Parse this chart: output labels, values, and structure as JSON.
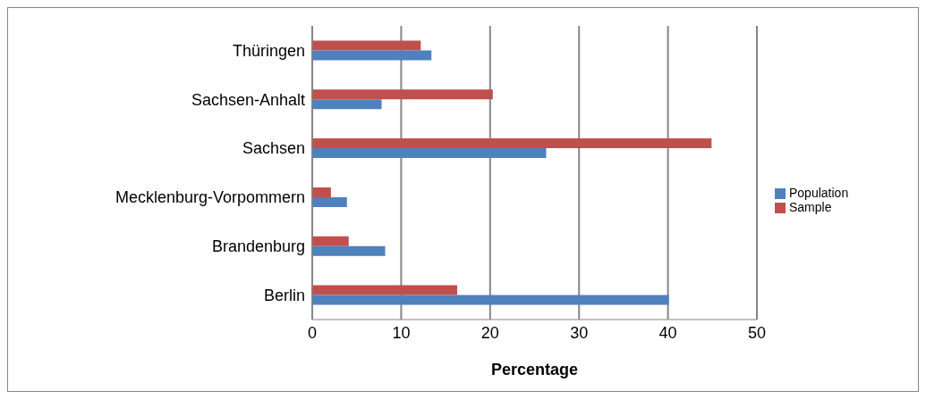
{
  "chart_data": {
    "type": "bar",
    "orientation": "horizontal",
    "xlabel": "Percentage",
    "categories": [
      "Thüringen",
      "Sachsen-Anhalt",
      "Sachsen",
      "Mecklenburg-Vorpommern",
      "Brandenburg",
      "Berlin"
    ],
    "series": [
      {
        "name": "Sample",
        "color": "#c0504d",
        "values": [
          12.2,
          20.3,
          44.9,
          2.1,
          4.1,
          16.3
        ]
      },
      {
        "name": "Population",
        "color": "#4f81bd",
        "values": [
          13.4,
          7.8,
          26.3,
          3.9,
          8.2,
          40.1
        ]
      }
    ],
    "xlim": [
      0,
      50
    ],
    "xticks": [
      0,
      10,
      20,
      30,
      40,
      50
    ],
    "grid": "x",
    "legend": "right"
  }
}
